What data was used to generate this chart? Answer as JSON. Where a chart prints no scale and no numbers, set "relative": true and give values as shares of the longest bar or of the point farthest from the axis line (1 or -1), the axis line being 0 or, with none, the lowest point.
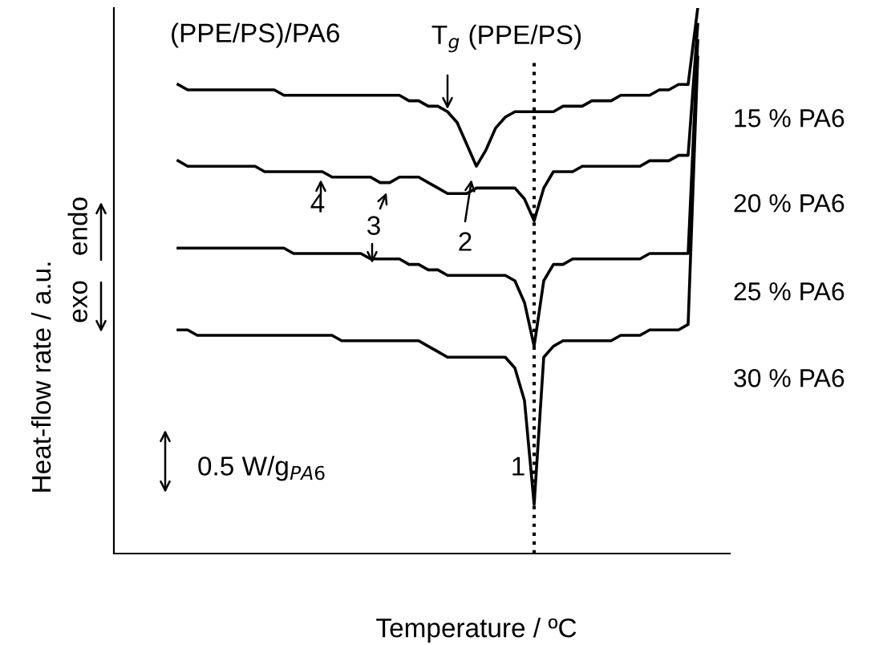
{
  "chart_data": {
    "type": "line",
    "relative": true,
    "title": "(PPE/PS)/PA6",
    "xlabel": "Temperature / ºC",
    "ylabel": "Heat-flow rate / a.u.",
    "categories": [
      null,
      null,
      null,
      null,
      null,
      null,
      null,
      null,
      null,
      null,
      null,
      null,
      null,
      null,
      null,
      null,
      null,
      null,
      null,
      null,
      null,
      null,
      null,
      null,
      null,
      null,
      null,
      null,
      null,
      null,
      null,
      null,
      null,
      null,
      null,
      null,
      null,
      null,
      null,
      null,
      null,
      null,
      null,
      null,
      null,
      null,
      null,
      null,
      null,
      null,
      null,
      null,
      null,
      null,
      null,
      null
    ],
    "series": [
      {
        "name": "15 % PA6",
        "color": "#000000",
        "values": [
          null,
          0.86,
          0.85,
          0.85,
          0.85,
          0.85,
          0.85,
          0.85,
          0.85,
          0.85,
          0.85,
          0.85,
          0.84,
          0.84,
          0.84,
          0.84,
          0.84,
          0.84,
          0.84,
          0.84,
          0.84,
          0.84,
          0.84,
          0.84,
          0.84,
          0.83,
          0.83,
          0.82,
          0.82,
          0.81,
          0.79,
          0.75,
          0.71,
          0.74,
          0.78,
          0.8,
          0.81,
          0.81,
          0.81,
          0.81,
          0.81,
          0.82,
          0.82,
          0.82,
          0.83,
          0.83,
          0.83,
          0.84,
          0.84,
          0.84,
          0.84,
          0.85,
          0.85,
          0.86,
          0.86,
          1.0
        ]
      },
      {
        "name": "20 % PA6",
        "color": "#000000",
        "values": [
          null,
          0.72,
          0.71,
          0.71,
          0.71,
          0.71,
          0.71,
          0.71,
          0.71,
          0.71,
          0.7,
          0.7,
          0.7,
          0.7,
          0.7,
          0.7,
          0.7,
          0.69,
          0.69,
          0.69,
          0.69,
          0.69,
          0.68,
          0.68,
          0.69,
          0.69,
          0.69,
          0.68,
          0.67,
          0.66,
          0.66,
          0.66,
          0.67,
          0.67,
          0.67,
          0.67,
          0.67,
          0.65,
          0.61,
          0.67,
          0.7,
          0.7,
          0.7,
          0.71,
          0.71,
          0.71,
          0.71,
          0.71,
          0.71,
          0.71,
          0.72,
          0.72,
          0.72,
          0.73,
          0.73,
          0.97
        ]
      },
      {
        "name": "25 % PA6",
        "color": "#000000",
        "values": [
          null,
          0.56,
          0.56,
          0.56,
          0.56,
          0.56,
          0.56,
          0.56,
          0.56,
          0.56,
          0.56,
          0.56,
          0.56,
          0.55,
          0.55,
          0.55,
          0.55,
          0.55,
          0.55,
          0.55,
          0.55,
          0.54,
          0.54,
          0.54,
          0.54,
          0.53,
          0.53,
          0.52,
          0.52,
          0.51,
          0.51,
          0.51,
          0.51,
          0.51,
          0.51,
          0.51,
          0.5,
          0.46,
          0.38,
          0.5,
          0.53,
          0.53,
          0.54,
          0.54,
          0.54,
          0.54,
          0.54,
          0.54,
          0.54,
          0.54,
          0.55,
          0.55,
          0.55,
          0.55,
          0.55,
          0.94
        ]
      },
      {
        "name": "30 % PA6",
        "color": "#000000",
        "values": [
          null,
          0.41,
          0.41,
          0.4,
          0.4,
          0.4,
          0.4,
          0.4,
          0.4,
          0.4,
          0.4,
          0.4,
          0.4,
          0.4,
          0.4,
          0.4,
          0.4,
          0.4,
          0.39,
          0.39,
          0.39,
          0.39,
          0.39,
          0.39,
          0.39,
          0.39,
          0.39,
          0.38,
          0.37,
          0.36,
          0.36,
          0.36,
          0.36,
          0.36,
          0.36,
          0.36,
          0.34,
          0.28,
          0.09,
          0.36,
          0.38,
          0.39,
          0.39,
          0.39,
          0.39,
          0.39,
          0.39,
          0.4,
          0.4,
          0.4,
          0.41,
          0.41,
          0.41,
          0.41,
          0.42,
          0.91
        ]
      }
    ],
    "annotations": [
      "T$_{g}$ (PPE/PS)",
      "1",
      "2",
      "3",
      "4",
      "0.5 W/g$_{PA6}$",
      "endo",
      "exo"
    ],
    "legend": false,
    "grid": false,
    "line_style": "solid",
    "marker": "none"
  }
}
